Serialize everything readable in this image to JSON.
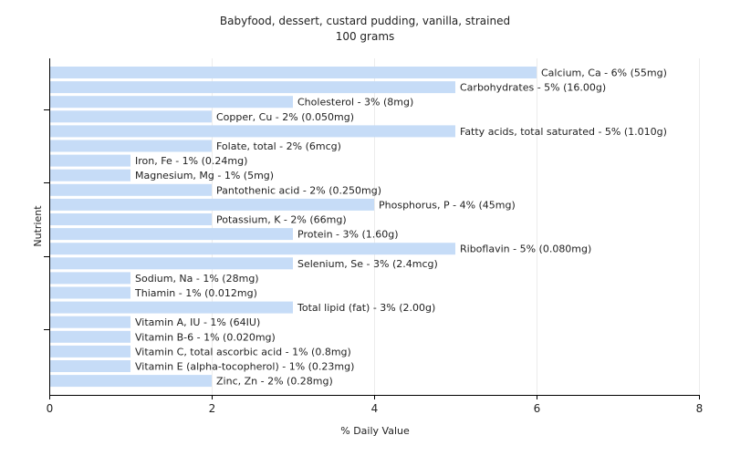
{
  "chart_data": {
    "type": "bar",
    "orientation": "horizontal",
    "title": "Babyfood, dessert, custard pudding, vanilla, strained",
    "subtitle": "100 grams",
    "xlabel": "% Daily Value",
    "ylabel": "Nutrient",
    "xlim": [
      0,
      8
    ],
    "x_ticks": [
      "0",
      "2",
      "4",
      "6",
      "8"
    ],
    "grid": true,
    "bar_color": "#c6dcf7",
    "categories": [
      "Calcium, Ca",
      "Carbohydrates",
      "Cholesterol",
      "Copper, Cu",
      "Fatty acids, total saturated",
      "Folate, total",
      "Iron, Fe",
      "Magnesium, Mg",
      "Pantothenic acid",
      "Phosphorus, P",
      "Potassium, K",
      "Protein",
      "Riboflavin",
      "Selenium, Se",
      "Sodium, Na",
      "Thiamin",
      "Total lipid (fat)",
      "Vitamin A, IU",
      "Vitamin B-6",
      "Vitamin C, total ascorbic acid",
      "Vitamin E (alpha-tocopherol)",
      "Zinc, Zn"
    ],
    "values": [
      6,
      5,
      3,
      2,
      5,
      2,
      1,
      1,
      2,
      4,
      2,
      3,
      5,
      3,
      1,
      1,
      3,
      1,
      1,
      1,
      1,
      2
    ],
    "labels": [
      "Calcium, Ca - 6% (55mg)",
      "Carbohydrates - 5% (16.00g)",
      "Cholesterol - 3% (8mg)",
      "Copper, Cu - 2% (0.050mg)",
      "Fatty acids, total saturated - 5% (1.010g)",
      "Folate, total - 2% (6mcg)",
      "Iron, Fe - 1% (0.24mg)",
      "Magnesium, Mg - 1% (5mg)",
      "Pantothenic acid - 2% (0.250mg)",
      "Phosphorus, P - 4% (45mg)",
      "Potassium, K - 2% (66mg)",
      "Protein - 3% (1.60g)",
      "Riboflavin - 5% (0.080mg)",
      "Selenium, Se - 3% (2.4mcg)",
      "Sodium, Na - 1% (28mg)",
      "Thiamin - 1% (0.012mg)",
      "Total lipid (fat) - 3% (2.00g)",
      "Vitamin A, IU - 1% (64IU)",
      "Vitamin B-6 - 1% (0.020mg)",
      "Vitamin C, total ascorbic acid - 1% (0.8mg)",
      "Vitamin E (alpha-tocopherol) - 1% (0.23mg)",
      "Zinc, Zn - 2% (0.28mg)"
    ]
  }
}
